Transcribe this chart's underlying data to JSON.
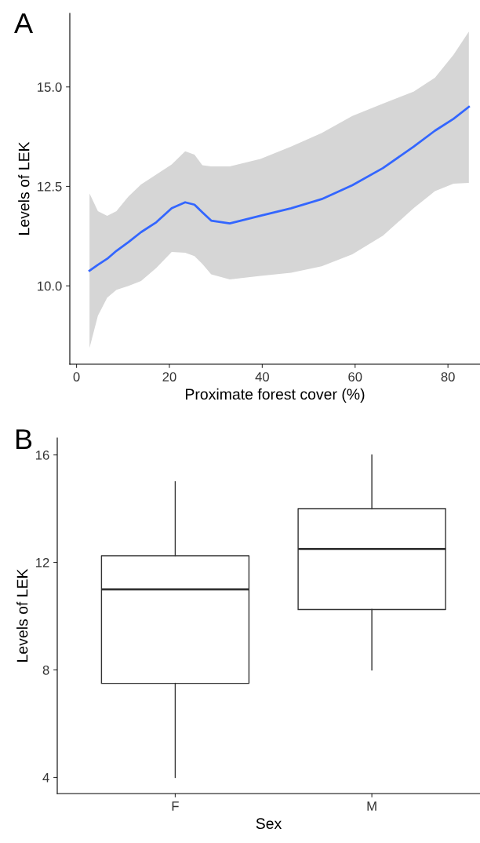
{
  "chart_data": [
    {
      "type": "line",
      "annotations": [
        "A"
      ],
      "xlabel": "Proximate forest cover (%)",
      "ylabel": "Levels of LEK",
      "xlim": [
        -1.45,
        86.9
      ],
      "ylim": [
        8.03,
        16.85
      ],
      "xticks": [
        0,
        20,
        40,
        60,
        80
      ],
      "yticks": [
        {
          "value": 10,
          "label": "10.0"
        },
        {
          "value": 12.5,
          "label": "12.5"
        },
        {
          "value": 15,
          "label": "15.0"
        }
      ],
      "grid": false,
      "legend": false,
      "series": [
        {
          "color": "#3366ff",
          "x": [
            2.8,
            4.6,
            6.6,
            8.6,
            11.2,
            13.9,
            17.2,
            20.5,
            23.4,
            25.4,
            27.1,
            29.0,
            33.0,
            39.6,
            46.2,
            52.8,
            59.4,
            66.0,
            72.6,
            77.2,
            81.2,
            84.5
          ],
          "values": [
            10.38,
            10.53,
            10.68,
            10.88,
            11.1,
            11.35,
            11.6,
            11.95,
            12.1,
            12.04,
            11.85,
            11.64,
            11.57,
            11.76,
            11.95,
            12.18,
            12.53,
            12.96,
            13.5,
            13.9,
            14.2,
            14.5
          ],
          "upper": [
            12.32,
            11.88,
            11.76,
            11.88,
            12.25,
            12.55,
            12.8,
            13.05,
            13.38,
            13.3,
            13.03,
            13.0,
            13.0,
            13.19,
            13.5,
            13.84,
            14.27,
            14.58,
            14.88,
            15.23,
            15.81,
            16.39
          ],
          "lower": [
            8.44,
            9.25,
            9.7,
            9.9,
            10.0,
            10.12,
            10.45,
            10.85,
            10.83,
            10.75,
            10.55,
            10.29,
            10.16,
            10.25,
            10.33,
            10.49,
            10.79,
            11.26,
            11.95,
            12.38,
            12.57,
            12.59
          ]
        }
      ]
    },
    {
      "type": "box",
      "annotations": [
        "B"
      ],
      "xlabel": "Sex",
      "ylabel": "Levels of LEK",
      "categories": [
        "F",
        "M"
      ],
      "ylim": [
        3.4,
        16.63
      ],
      "yticks": [
        4,
        8,
        12,
        16
      ],
      "grid": false,
      "legend": false,
      "boxes": [
        {
          "low": 4,
          "q1": 7.5,
          "median": 11.0,
          "q3": 12.25,
          "high": 15.0
        },
        {
          "low": 8.0,
          "q1": 10.25,
          "median": 12.5,
          "q3": 14.0,
          "high": 16.0
        }
      ]
    }
  ]
}
